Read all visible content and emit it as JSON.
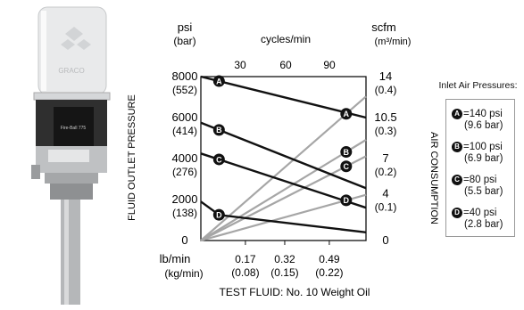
{
  "chart_data": {
    "type": "line",
    "left_axis": {
      "unit": "psi",
      "unit_sub": "(bar)",
      "label": "FLUID OUTLET PRESSURE",
      "ticks": [
        {
          "value": 8000,
          "label": "8000",
          "sub": "(552)"
        },
        {
          "value": 6000,
          "label": "6000",
          "sub": "(414)"
        },
        {
          "value": 4000,
          "label": "4000",
          "sub": "(276)"
        },
        {
          "value": 2000,
          "label": "2000",
          "sub": "(138)"
        },
        {
          "value": 0,
          "label": "0",
          "sub": ""
        }
      ],
      "ylim": [
        0,
        8000
      ]
    },
    "right_axis": {
      "unit": "scfm",
      "unit_sub": "(m³/min)",
      "label": "AIR CONSUMPTION",
      "ticks": [
        {
          "value": 14,
          "label": "14",
          "sub": "(0.4)"
        },
        {
          "value": 10.5,
          "label": "10.5",
          "sub": "(0.3)"
        },
        {
          "value": 7,
          "label": "7",
          "sub": "(0.2)"
        },
        {
          "value": 4,
          "label": "4",
          "sub": "(0.1)"
        },
        {
          "value": 0,
          "label": "0",
          "sub": ""
        }
      ],
      "ylim": [
        0,
        14
      ]
    },
    "top_axis": {
      "label": "cycles/min",
      "ticks": [
        "30",
        "60",
        "90"
      ]
    },
    "bottom_axis": {
      "unit": "lb/min",
      "unit_sub": "(kg/min)",
      "ticks": [
        {
          "value": 0.17,
          "label": "0.17",
          "sub": "(0.08)"
        },
        {
          "value": 0.32,
          "label": "0.32",
          "sub": "(0.15)"
        },
        {
          "value": 0.49,
          "label": "0.49",
          "sub": "(0.22)"
        }
      ],
      "xlim": [
        0,
        0.63
      ]
    },
    "caption": "TEST FLUID: No. 10 Weight Oil",
    "series_pressure": [
      {
        "key": "A",
        "x": [
          0,
          0.63
        ],
        "y": [
          8000,
          6000
        ]
      },
      {
        "key": "B",
        "x": [
          0,
          0.63
        ],
        "y": [
          5750,
          2550
        ]
      },
      {
        "key": "C",
        "x": [
          0,
          0.63
        ],
        "y": [
          4250,
          1600
        ]
      },
      {
        "key": "D",
        "x": [
          0,
          0.07,
          0.63
        ],
        "y": [
          1900,
          1250,
          400
        ]
      }
    ],
    "series_air": [
      {
        "key": "A",
        "x": [
          0,
          0.63
        ],
        "y": [
          0,
          12.3
        ]
      },
      {
        "key": "B",
        "x": [
          0,
          0.63
        ],
        "y": [
          0,
          8.6
        ]
      },
      {
        "key": "C",
        "x": [
          0,
          0.63
        ],
        "y": [
          0,
          7.2
        ]
      },
      {
        "key": "D",
        "x": [
          0,
          0.63
        ],
        "y": [
          0,
          3.9
        ]
      }
    ],
    "legend": {
      "title": "Inlet Air Pressures:",
      "placement": "right",
      "items": [
        {
          "key": "A",
          "psi": "=140 psi",
          "bar": "(9.6 bar)"
        },
        {
          "key": "B",
          "psi": "=100 psi",
          "bar": "(6.9 bar)"
        },
        {
          "key": "C",
          "psi": "=80 psi",
          "bar": "(5.5 bar)"
        },
        {
          "key": "D",
          "psi": "=40 psi",
          "bar": "(2.8 bar)"
        }
      ]
    },
    "grid": false
  },
  "product_image": {
    "logo": "GRACO",
    "label": "Fire-Ball 775"
  },
  "colors": {
    "pressure_line": "#111111",
    "air_line": "#a6a6a6",
    "frame": "#111111",
    "legend_border": "#999999"
  }
}
